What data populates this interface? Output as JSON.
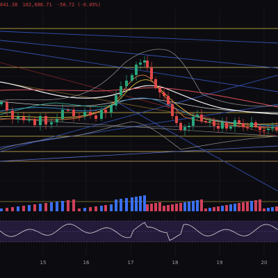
{
  "ohlc_header": {
    "open_fragment": "641.38",
    "close_value": "102,688.71",
    "change": "-50.72 (-0.05%)"
  },
  "colors": {
    "background": "#0c0c10",
    "candle_up": "#2aa67c",
    "candle_down": "#e04848",
    "volume_up": "#3a6ff0",
    "volume_down": "#d0405a",
    "rsi_band": "#2a1f44",
    "rsi_line": "#dcdcdc"
  },
  "time_axis": {
    "labels": [
      "15",
      "16",
      "17",
      "18",
      "19",
      "20"
    ]
  },
  "chart_data": {
    "type": "candlestick",
    "x": [
      "15",
      "16",
      "17",
      "18",
      "19",
      "20"
    ],
    "series": [],
    "panes": [
      "price",
      "volume",
      "rsi"
    ],
    "grid": true
  }
}
